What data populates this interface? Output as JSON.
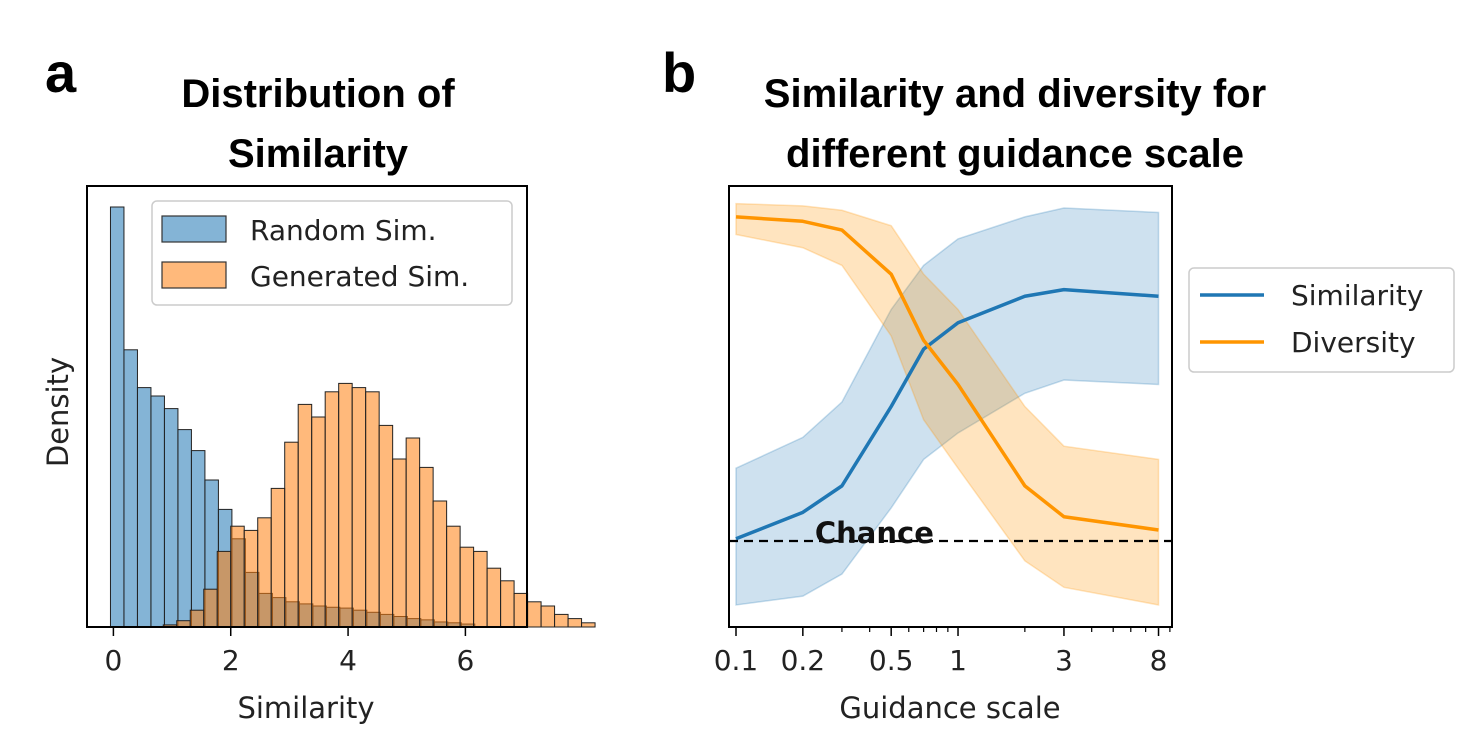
{
  "chart_data": [
    {
      "panel_label": "a",
      "type": "bar",
      "subtype": "histogram",
      "title_lines": [
        "Distribution of",
        "Similarity"
      ],
      "xlabel": "Similarity",
      "ylabel": "Density",
      "xlim": [
        -0.45,
        7.05
      ],
      "ylim": [
        0,
        1.05
      ],
      "xticks": [
        0,
        2,
        4,
        6
      ],
      "xtick_labels": [
        "0",
        "2",
        "4",
        "6"
      ],
      "yticks_visible": false,
      "bin_width": 0.23,
      "legend_position": "top-right",
      "series": [
        {
          "name": "Random Sim.",
          "color": "#1f77b4",
          "bin_start": -0.05,
          "values": [
            1.0,
            0.66,
            0.57,
            0.55,
            0.52,
            0.47,
            0.42,
            0.35,
            0.28,
            0.21,
            0.13,
            0.08,
            0.07,
            0.06,
            0.055,
            0.05,
            0.047,
            0.045,
            0.04,
            0.035,
            0.03,
            0.025,
            0.02,
            0.017,
            0.012,
            0.01,
            0.007
          ]
        },
        {
          "name": "Generated Sim.",
          "color": "#ff7f0e",
          "bin_start": 0.85,
          "values": [
            0.005,
            0.015,
            0.04,
            0.09,
            0.18,
            0.24,
            0.23,
            0.26,
            0.33,
            0.44,
            0.53,
            0.5,
            0.56,
            0.58,
            0.57,
            0.56,
            0.48,
            0.4,
            0.45,
            0.38,
            0.3,
            0.24,
            0.19,
            0.18,
            0.14,
            0.11,
            0.08,
            0.06,
            0.05,
            0.03,
            0.02,
            0.01
          ]
        }
      ]
    },
    {
      "panel_label": "b",
      "type": "line",
      "title_lines": [
        "Similarity and diversity for",
        "different guidance scale"
      ],
      "xlabel": "Guidance scale",
      "xscale": "log",
      "xlim": [
        0.093,
        9.2
      ],
      "ylim": [
        0,
        1
      ],
      "xticks": [
        0.1,
        0.2,
        0.5,
        1,
        3,
        8
      ],
      "xtick_labels": [
        "0.1",
        "0.2",
        "0.5",
        "1",
        "3",
        "8"
      ],
      "minor_xticks": [
        0.3,
        0.4,
        0.6,
        0.7,
        0.8,
        0.9,
        2,
        4,
        5,
        6,
        7,
        9
      ],
      "yticks_visible": false,
      "legend_position": "outside-right",
      "x": [
        0.1,
        0.2,
        0.3,
        0.5,
        0.7,
        1,
        2,
        3,
        8
      ],
      "series": [
        {
          "name": "Similarity",
          "color": "#1f77b4",
          "values": [
            0.2,
            0.26,
            0.32,
            0.5,
            0.63,
            0.69,
            0.75,
            0.765,
            0.75
          ],
          "band_low": [
            0.05,
            0.07,
            0.12,
            0.27,
            0.38,
            0.44,
            0.53,
            0.56,
            0.55
          ],
          "band_high": [
            0.36,
            0.43,
            0.51,
            0.72,
            0.82,
            0.88,
            0.93,
            0.95,
            0.94
          ]
        },
        {
          "name": "Diversity",
          "color": "#ff9500",
          "values": [
            0.93,
            0.92,
            0.9,
            0.8,
            0.65,
            0.55,
            0.32,
            0.25,
            0.22
          ],
          "band_low": [
            0.89,
            0.86,
            0.82,
            0.66,
            0.47,
            0.36,
            0.15,
            0.09,
            0.05
          ],
          "band_high": [
            0.96,
            0.955,
            0.945,
            0.91,
            0.8,
            0.72,
            0.5,
            0.41,
            0.38
          ]
        }
      ],
      "reference_line": {
        "y": 0.195,
        "label": "Chance",
        "style": "dashed",
        "color": "#000000"
      }
    }
  ]
}
